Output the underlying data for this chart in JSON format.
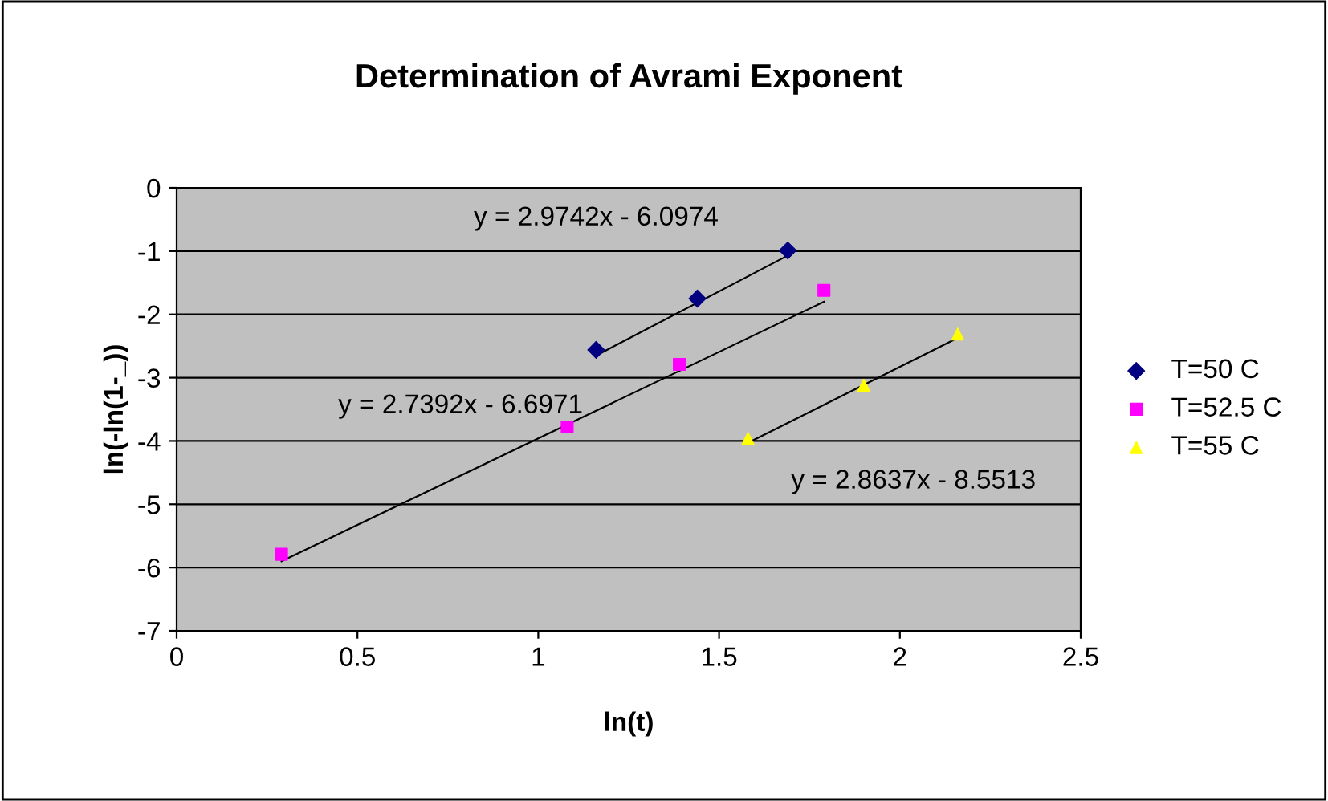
{
  "chart_data": {
    "type": "scatter",
    "title": "Determination of Avrami Exponent",
    "xlabel": "ln(t)",
    "ylabel": "ln(-ln(1-_))",
    "xlim": [
      0,
      2.5
    ],
    "xticks": [
      0,
      0.5,
      1,
      1.5,
      2,
      2.5
    ],
    "ylim": [
      -7,
      0
    ],
    "yticks": [
      -7,
      -6,
      -5,
      -4,
      -3,
      -2,
      -1,
      0
    ],
    "grid": "y",
    "legend": "right",
    "series": [
      {
        "name": "T=50 C",
        "color": "#000080",
        "marker": "diamond",
        "x": [
          1.16,
          1.44,
          1.69
        ],
        "values": [
          -2.56,
          -1.75,
          -0.99
        ]
      },
      {
        "name": "T=52.5 C",
        "color": "#ff00ff",
        "marker": "square",
        "x": [
          0.29,
          1.08,
          1.39,
          1.79
        ],
        "values": [
          -5.79,
          -3.78,
          -2.79,
          -1.62
        ]
      },
      {
        "name": "T=55 C",
        "color": "#ffff00",
        "marker": "triangle",
        "x": [
          1.58,
          1.9,
          2.16
        ],
        "values": [
          -3.96,
          -3.12,
          -2.31
        ]
      },
      {
        "type": "line",
        "color": "#000000",
        "x": [
          1.16,
          1.69
        ],
        "values": [
          -2.65,
          -1.07
        ]
      },
      {
        "type": "line",
        "color": "#000000",
        "x": [
          0.29,
          1.79
        ],
        "values": [
          -5.9,
          -1.8
        ]
      },
      {
        "type": "line",
        "color": "#000000",
        "x": [
          1.58,
          2.16
        ],
        "values": [
          -4.03,
          -2.37
        ]
      }
    ],
    "annotations": [
      "y = 2.9742x - 6.0974",
      "y = 2.7392x - 6.6971",
      "y = 2.8637x - 8.5513"
    ]
  }
}
